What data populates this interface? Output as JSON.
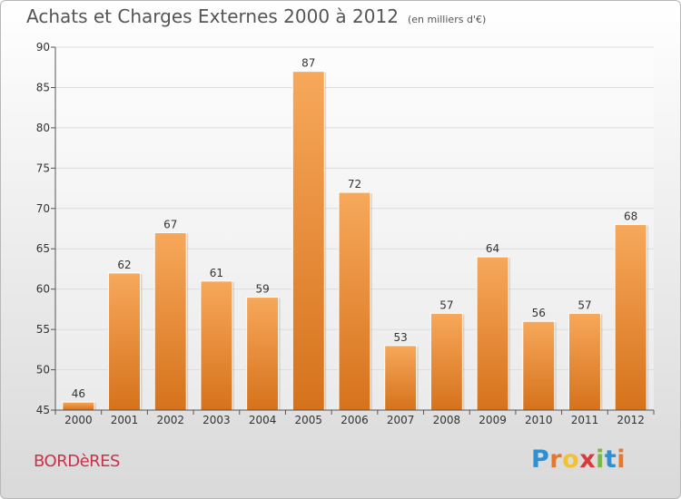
{
  "header": {
    "title": "Achats et Charges Externes 2000 à 2012",
    "subtitle": "(en milliers d'€)"
  },
  "footer": {
    "commune": "BORDèRES",
    "logo": {
      "letters": [
        "P",
        "r",
        "o",
        "x",
        "i",
        "t",
        "i"
      ],
      "colors": [
        "#2f8fd1",
        "#e8772e",
        "#f2c230",
        "#d93a3a",
        "#7ab648",
        "#2f8fd1",
        "#e8772e"
      ]
    }
  },
  "colors": {
    "bar_light": "#f7a85a",
    "bar_dark": "#d6721c",
    "axis": "#555555",
    "grid": "#dddddd",
    "text": "#333333"
  },
  "chart_data": {
    "type": "bar",
    "categories": [
      "2000",
      "2001",
      "2002",
      "2003",
      "2004",
      "2005",
      "2006",
      "2007",
      "2008",
      "2009",
      "2010",
      "2011",
      "2012"
    ],
    "values": [
      46,
      62,
      67,
      61,
      59,
      87,
      72,
      53,
      57,
      64,
      56,
      57,
      68
    ],
    "ylim": [
      45,
      90
    ],
    "yticks": [
      45,
      50,
      55,
      60,
      65,
      70,
      75,
      80,
      85,
      90
    ],
    "grid": true,
    "data_labels": true
  }
}
